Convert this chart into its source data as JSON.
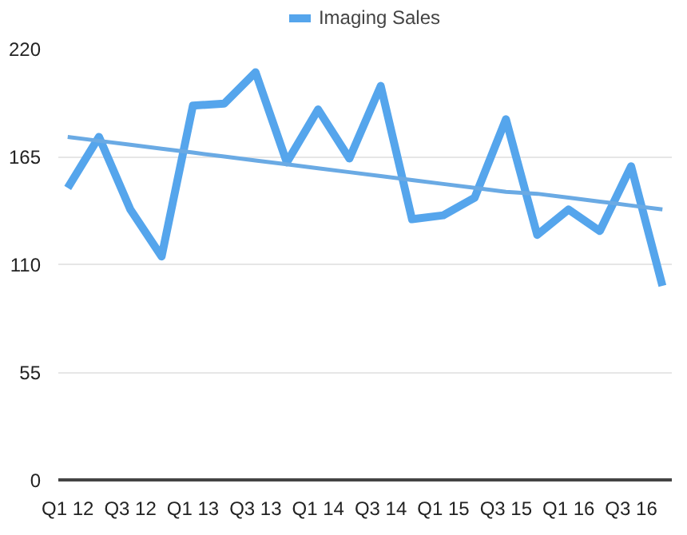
{
  "chart_data": {
    "type": "line",
    "categories": [
      "Q1 12",
      null,
      "Q3 12",
      null,
      "Q1 13",
      null,
      "Q3 13",
      null,
      "Q1 14",
      null,
      "Q3 14",
      null,
      "Q1 15",
      null,
      "Q3 15",
      null,
      "Q1 16",
      null,
      "Q3 16",
      null
    ],
    "series": [
      {
        "name": "Imaging Sales",
        "color": "#55a5ec",
        "values": [
          149,
          175,
          138,
          114,
          191,
          192,
          208,
          162,
          189,
          164,
          201,
          133,
          135,
          144,
          184,
          125,
          138,
          127,
          160,
          99
        ]
      },
      {
        "color": "#6aaae4",
        "values": [
          175,
          173,
          171,
          169,
          167,
          165,
          163,
          161,
          159,
          157,
          155,
          153,
          151,
          149,
          147,
          146,
          144,
          142,
          140,
          138
        ]
      }
    ],
    "ylim": [
      0,
      220
    ],
    "yticks": [
      0,
      55,
      110,
      165,
      220
    ],
    "grid": "y",
    "legend": "top",
    "marker": "none",
    "line_style": "solid"
  }
}
